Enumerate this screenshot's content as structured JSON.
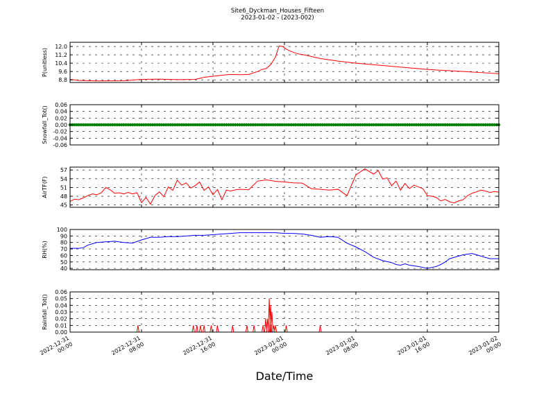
{
  "header": {
    "title": "Site6_Dyckman_Houses_Fifteen",
    "subtitle": "2023-01-02 - (2023-002)"
  },
  "chart_data": {
    "type": "line",
    "xlabel": "Date/Time",
    "x_domain": [
      "2022-12-31 00:00",
      "2023-01-02 00:00"
    ],
    "x_ticks": [
      "2022-12-31 00:00",
      "2022-12-31 08:00",
      "2022-12-31 16:00",
      "2023-01-01 00:00",
      "2023-01-01 08:00",
      "2023-01-01 16:00",
      "2023-01-02 00:00"
    ],
    "x_tick_labels": [
      [
        "2022-12-31",
        "00:00"
      ],
      [
        "2022-12-31",
        "08:00"
      ],
      [
        "2022-12-31",
        "16:00"
      ],
      [
        "2023-01-01",
        "00:00"
      ],
      [
        "2023-01-01",
        "08:00"
      ],
      [
        "2023-01-01",
        "16:00"
      ],
      [
        "2023-01-02",
        "00:00"
      ]
    ],
    "grid": true,
    "panels": [
      {
        "ylabel": "P(unitless)",
        "ylim": [
          8.55,
          12.4
        ],
        "yticks": [
          8.8,
          9.6,
          10.4,
          11.2,
          12.0
        ],
        "ytick_labels": [
          "8.8",
          "9.6",
          "10.4",
          "11.2",
          "12.0"
        ],
        "color": "#ff0000",
        "series": {
          "x_hours": [
            0,
            1,
            3,
            6,
            8,
            10,
            12,
            14,
            15,
            16,
            17,
            18,
            19,
            20,
            21,
            21.5,
            22,
            22.5,
            23,
            23.4,
            23.8,
            24.2,
            24.8,
            25.5,
            26.5,
            28,
            30,
            32,
            34,
            36,
            38,
            40,
            42,
            44,
            46,
            48
          ],
          "y": [
            8.85,
            8.75,
            8.7,
            8.72,
            8.85,
            8.87,
            8.82,
            8.85,
            9.05,
            9.15,
            9.25,
            9.32,
            9.3,
            9.32,
            9.6,
            9.8,
            9.9,
            10.3,
            11.0,
            12.05,
            12.0,
            11.75,
            11.5,
            11.3,
            11.15,
            10.85,
            10.6,
            10.4,
            10.25,
            10.1,
            9.95,
            9.8,
            9.7,
            9.6,
            9.5,
            9.4
          ]
        }
      },
      {
        "ylabel": "Snowfall_Tot()",
        "ylim": [
          -0.06,
          0.06
        ],
        "yticks": [
          -0.06,
          -0.04,
          -0.02,
          0.0,
          0.02,
          0.04,
          0.06
        ],
        "ytick_labels": [
          "-0.06",
          "-0.04",
          "-0.02",
          "0.00",
          "0.02",
          "0.04",
          "0.06"
        ],
        "color": "#008000",
        "marker": "dot",
        "series": {
          "constant": 0.0
        }
      },
      {
        "ylabel": "AirTF(F)",
        "ylim": [
          44.2,
          58.0
        ],
        "yticks": [
          45,
          48,
          51,
          54,
          57
        ],
        "ytick_labels": [
          "45",
          "48",
          "51",
          "54",
          "57"
        ],
        "color": "#ff0000",
        "series": {
          "x_hours": [
            0,
            0.5,
            1,
            1.5,
            2,
            2.5,
            3,
            3.5,
            4,
            4.5,
            5,
            5.5,
            6,
            6.5,
            7,
            7.5,
            8,
            8.5,
            9,
            9.5,
            10,
            10.5,
            11,
            11.5,
            12,
            12.5,
            13,
            13.5,
            14,
            14.5,
            15,
            15.5,
            16,
            16.5,
            17,
            17.5,
            18,
            18.5,
            19,
            20,
            21,
            22,
            22.5,
            23,
            24,
            25,
            26,
            27,
            28,
            29,
            30,
            31,
            32,
            33,
            34,
            34.5,
            35,
            35.5,
            36,
            36.5,
            37,
            37.5,
            38,
            38.5,
            39,
            39.5,
            40,
            40.5,
            41,
            41.5,
            42,
            42.5,
            43,
            43.5,
            44,
            44.5,
            45,
            45.5,
            46,
            46.5,
            47,
            47.5,
            48
          ],
          "y": [
            46.2,
            47.0,
            46.8,
            47.5,
            48.2,
            48.8,
            48.5,
            49.2,
            51.0,
            50.2,
            49.0,
            49.2,
            48.8,
            49.3,
            48.8,
            49.2,
            45.8,
            47.6,
            45.3,
            48.2,
            49.5,
            47.8,
            51.2,
            50.0,
            53.5,
            51.8,
            52.6,
            50.8,
            51.6,
            52.9,
            50.0,
            51.2,
            48.5,
            50.3,
            46.8,
            50.1,
            49.8,
            50.2,
            50.4,
            50.2,
            53.2,
            53.6,
            53.4,
            53.1,
            52.9,
            52.6,
            52.5,
            50.6,
            50.4,
            50.1,
            50.4,
            48.2,
            55.3,
            57.4,
            55.6,
            56.8,
            53.9,
            54.3,
            51.6,
            53.2,
            50.1,
            52.4,
            50.6,
            51.8,
            51.2,
            50.6,
            48.2,
            48.0,
            47.6,
            46.4,
            46.9,
            46.1,
            45.7,
            46.4,
            46.8,
            48.2,
            49.0,
            49.5,
            50.1,
            49.8,
            49.3,
            49.6,
            49.4
          ]
        }
      },
      {
        "ylabel": "RH(%)",
        "ylim": [
          38,
          100
        ],
        "yticks": [
          40,
          50,
          60,
          70,
          80,
          90,
          100
        ],
        "ytick_labels": [
          "40",
          "50",
          "60",
          "70",
          "80",
          "90",
          "100"
        ],
        "color": "#0000ff",
        "series": {
          "x_hours": [
            0,
            1,
            1.5,
            2,
            3,
            4,
            5,
            6,
            7,
            8,
            9,
            10,
            11,
            12,
            13,
            14,
            15,
            16,
            17,
            18,
            19,
            20,
            21,
            22,
            23,
            24,
            25,
            26,
            27,
            28,
            29,
            30,
            31,
            32,
            33,
            34,
            35,
            36,
            36.5,
            37,
            37.5,
            38,
            39,
            40,
            41,
            41.5,
            42,
            42.5,
            43,
            44,
            45,
            46,
            47,
            48
          ],
          "y": [
            71,
            71,
            72,
            76,
            80,
            81,
            82,
            80,
            79,
            84,
            88,
            88,
            89,
            89,
            90,
            91,
            91,
            92,
            93,
            94,
            95,
            95,
            95,
            95,
            95,
            94,
            94,
            93,
            91,
            88,
            89,
            88,
            79,
            73,
            66,
            57,
            52,
            49,
            46,
            45,
            47,
            45,
            43,
            40,
            43,
            46,
            50,
            55,
            57,
            61,
            63,
            59,
            55,
            55
          ]
        }
      },
      {
        "ylabel": "Rainfall_Tot()",
        "ylim": [
          0.0,
          0.06
        ],
        "yticks": [
          0.0,
          0.01,
          0.02,
          0.03,
          0.04,
          0.05,
          0.06
        ],
        "ytick_labels": [
          "0.00",
          "0.01",
          "0.02",
          "0.03",
          "0.04",
          "0.05",
          "0.06"
        ],
        "color": "#ff0000",
        "series": {
          "spikes": [
            [
              7.6,
              0.01
            ],
            [
              13.8,
              0.01
            ],
            [
              14.2,
              0.01
            ],
            [
              14.6,
              0.01
            ],
            [
              15.0,
              0.01
            ],
            [
              15.8,
              0.01
            ],
            [
              16.5,
              0.01
            ],
            [
              18.2,
              0.01
            ],
            [
              19.8,
              0.01
            ],
            [
              20.6,
              0.01
            ],
            [
              21.6,
              0.01
            ],
            [
              21.9,
              0.02
            ],
            [
              22.1,
              0.02
            ],
            [
              22.3,
              0.05
            ],
            [
              22.45,
              0.04
            ],
            [
              22.6,
              0.03
            ],
            [
              22.8,
              0.01
            ],
            [
              23.0,
              0.01
            ],
            [
              24.2,
              0.01
            ],
            [
              28.0,
              0.01
            ]
          ]
        }
      }
    ]
  }
}
